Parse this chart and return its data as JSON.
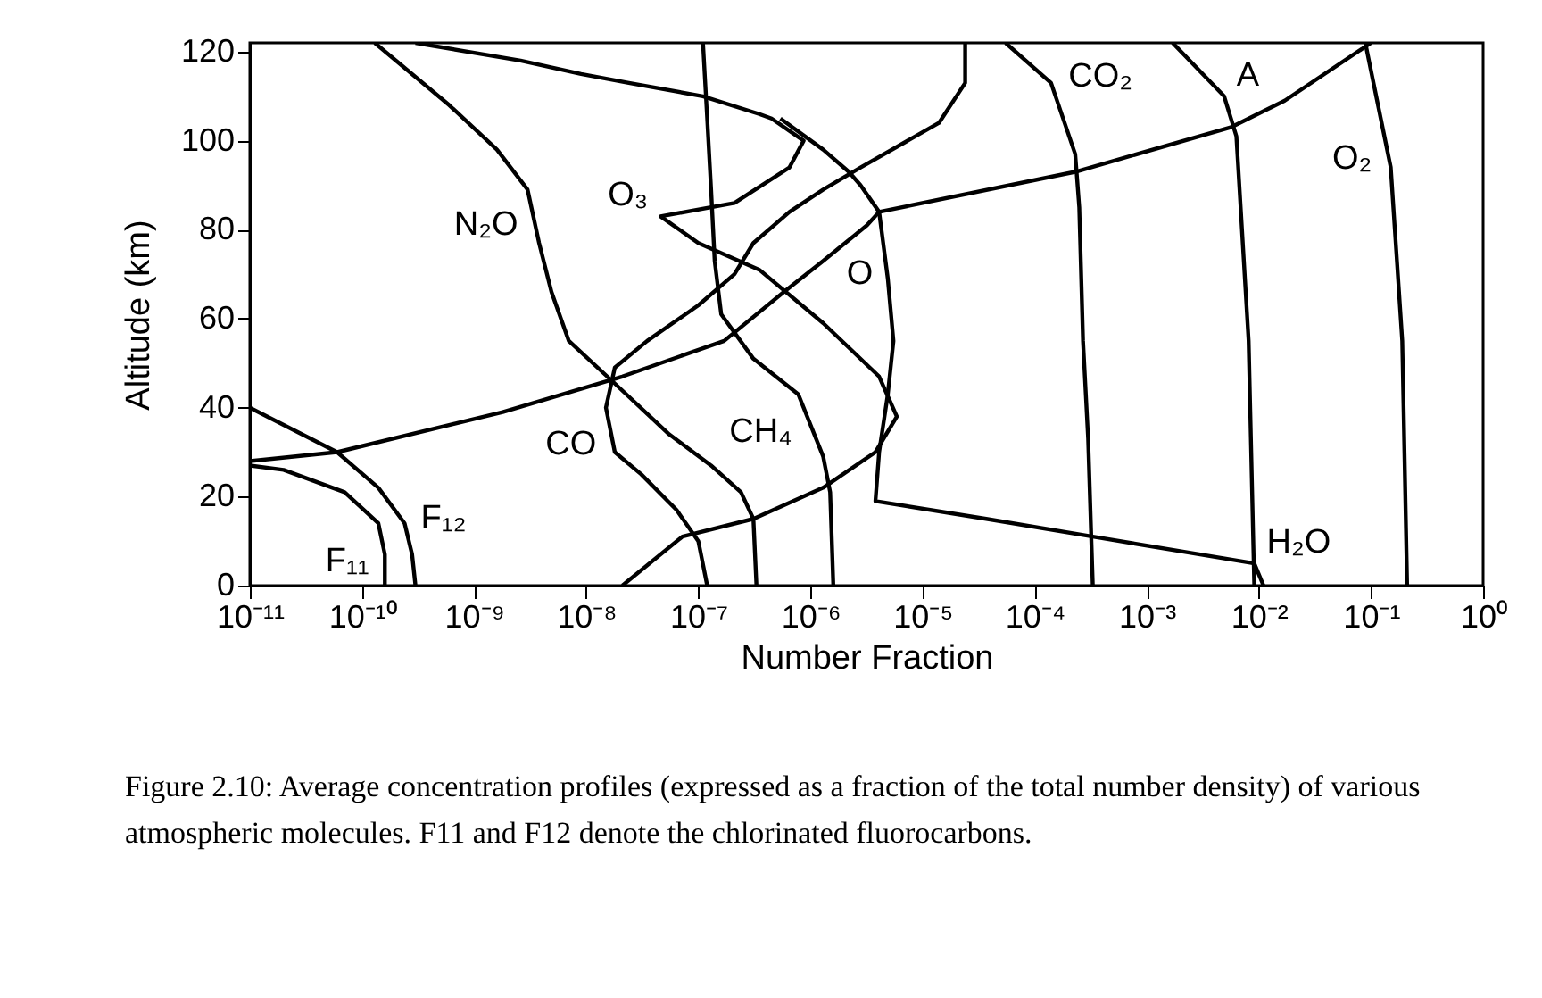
{
  "chart_data": {
    "type": "line",
    "xlabel": "Number Fraction",
    "ylabel": "Altitude (km)",
    "log": "x",
    "grid": false,
    "xlim": [
      1e-11,
      1
    ],
    "ylim": [
      0,
      122
    ],
    "xticks": [
      {
        "value": 1e-11,
        "label": "10⁻¹¹"
      },
      {
        "value": 1e-10,
        "label": "10⁻¹⁰"
      },
      {
        "value": 1e-09,
        "label": "10⁻⁹"
      },
      {
        "value": 1e-08,
        "label": "10⁻⁸"
      },
      {
        "value": 1e-07,
        "label": "10⁻⁷"
      },
      {
        "value": 1e-06,
        "label": "10⁻⁶"
      },
      {
        "value": 1e-05,
        "label": "10⁻⁵"
      },
      {
        "value": 0.0001,
        "label": "10⁻⁴"
      },
      {
        "value": 0.001,
        "label": "10⁻³"
      },
      {
        "value": 0.01,
        "label": "10⁻²"
      },
      {
        "value": 0.1,
        "label": "10⁻¹"
      },
      {
        "value": 1,
        "label": "10⁰"
      }
    ],
    "yticks": [
      0,
      20,
      40,
      60,
      80,
      100,
      120
    ],
    "series": [
      {
        "name": "O₃",
        "color": "#000000",
        "x": [
          3e-10,
          2.6e-09,
          9e-09,
          2.4e-08,
          1.1e-07,
          3.5e-07,
          4.5e-07,
          8.7e-07,
          6.5e-07,
          2.1e-07,
          4.6e-08,
          1e-07,
          3.5e-07,
          1.3e-06,
          4.1e-06,
          5.9e-06,
          3.8e-06,
          1.3e-06,
          3.1e-07,
          7.2e-08,
          2.1e-08
        ],
        "values": [
          122,
          118,
          115,
          113,
          110,
          106,
          105,
          100,
          94,
          86,
          83,
          77,
          71,
          59,
          47,
          38,
          30,
          22,
          15,
          11,
          0
        ]
      },
      {
        "name": "H₂O",
        "color": "#000000",
        "x": [
          5.4e-07,
          1.3e-06,
          2.2e-06,
          2.8e-06,
          4.1e-06,
          4.9e-06,
          5.5e-06,
          4.9e-06,
          4.1e-06,
          3.8e-06,
          3.7e-05,
          0.00033,
          0.003,
          0.0091,
          0.011
        ],
        "values": [
          105,
          98,
          93,
          90,
          84,
          69,
          55,
          43,
          30,
          19,
          15,
          11,
          7,
          5,
          0
        ]
      },
      {
        "name": "CO",
        "color": "#000000",
        "x": [
          2.4e-05,
          2.4e-05,
          1.4e-05,
          2.8e-06,
          1.3e-06,
          6.5e-07,
          3.1e-07,
          2.1e-07,
          1e-07,
          3.5e-08,
          1.8e-08,
          1.5e-08,
          1.8e-08,
          3.1e-08,
          6.4e-08,
          1e-07,
          1.2e-07
        ],
        "values": [
          122,
          113,
          104,
          94,
          89,
          84,
          77,
          70,
          63,
          55,
          49,
          40,
          30,
          25,
          17,
          10,
          0
        ]
      },
      {
        "name": "CH₄",
        "color": "#000000",
        "x": [
          1.1e-07,
          1.2e-07,
          1.3e-07,
          1.4e-07,
          1.6e-07,
          3.1e-07,
          7.8e-07,
          1.3e-06,
          1.5e-06,
          1.6e-06
        ],
        "values": [
          122,
          105,
          89,
          73,
          61,
          51,
          43,
          29,
          21,
          0
        ]
      },
      {
        "name": "N₂O",
        "color": "#000000",
        "x": [
          1.3e-10,
          6e-10,
          1.6e-09,
          3e-09,
          3.8e-09,
          4.9e-09,
          7e-09,
          1.7e-08,
          5.5e-08,
          1.3e-07,
          2.4e-07,
          3.1e-07,
          3.3e-07
        ],
        "values": [
          122,
          108,
          98,
          89,
          77,
          66,
          55,
          46,
          34,
          27,
          21,
          15,
          0
        ]
      },
      {
        "name": "CO₂",
        "color": "#000000",
        "x": [
          5.5e-05,
          0.00014,
          0.00023,
          0.00025,
          0.00027,
          0.0003,
          0.00033
        ],
        "values": [
          122,
          113,
          97,
          85,
          55,
          33,
          0
        ]
      },
      {
        "name": "A",
        "color": "#000000",
        "x": [
          0.0017,
          0.0049,
          0.0063,
          0.0081,
          0.0091
        ],
        "values": [
          122,
          110,
          101,
          55,
          0
        ]
      },
      {
        "name": "O₂",
        "color": "#000000",
        "x": [
          0.089,
          0.15,
          0.19,
          0.21
        ],
        "values": [
          122,
          94,
          55,
          0
        ]
      },
      {
        "name": "O",
        "color": "#000000",
        "x": [
          0.1,
          0.017,
          0.0056,
          0.00023,
          4.1e-06,
          3.2e-06,
          1.3e-06,
          5.8e-07,
          1.7e-07,
          2.1e-08,
          1.8e-09,
          6e-11,
          1e-11
        ],
        "values": [
          122,
          109,
          103,
          93,
          84,
          81,
          73,
          66,
          55,
          47,
          39,
          30,
          28
        ]
      },
      {
        "name": "F₁₁",
        "color": "#000000",
        "x": [
          1e-11,
          2e-11,
          7e-11,
          1.4e-10,
          1.6e-10,
          1.6e-10
        ],
        "values": [
          27,
          26,
          21,
          14,
          7,
          0
        ]
      },
      {
        "name": "F₁₂",
        "color": "#000000",
        "x": [
          1e-11,
          6e-11,
          1.4e-10,
          2.4e-10,
          2.8e-10,
          3e-10
        ],
        "values": [
          40,
          30,
          22,
          14,
          7,
          0
        ]
      }
    ],
    "annotations": [
      "Figure 2.10: Average concentration profiles (expressed as a fraction of the total number density) of various atmospheric molecules. F11 and F12 denote the chlorinated fluorocarbons."
    ]
  }
}
